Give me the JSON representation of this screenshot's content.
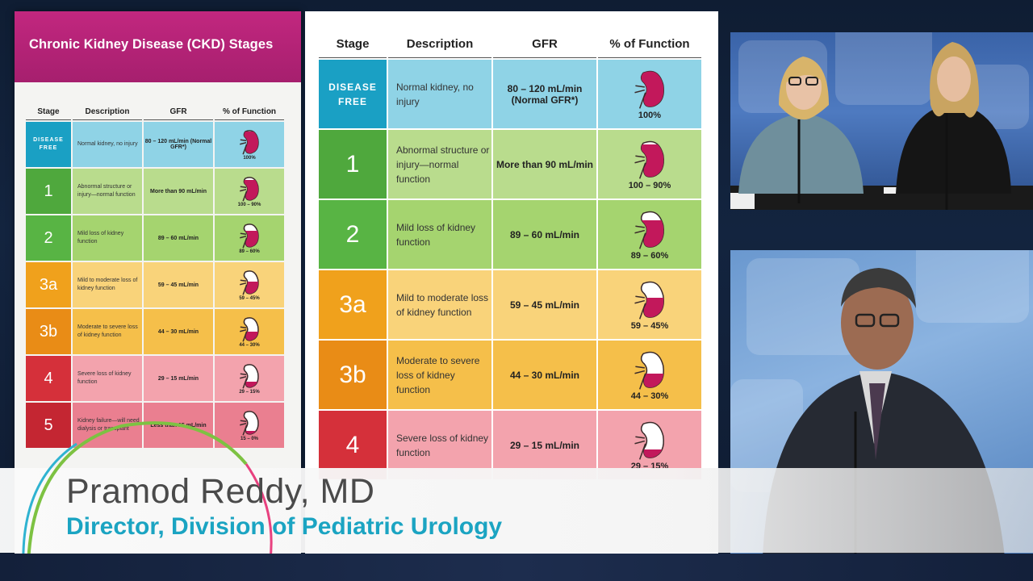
{
  "colors": {
    "teal": "#1aa0c4",
    "green": "#4fa83d",
    "orange": "#f0a11c",
    "red": "#d5303a",
    "magenta": "#c2277f",
    "name_gray": "#4a4a4a",
    "title_teal": "#1ba4c2"
  },
  "left_doc": {
    "title": "Chronic Kidney Disease (CKD) Stages",
    "headers": [
      "Stage",
      "Description",
      "GFR",
      "% of Function"
    ],
    "rows": [
      {
        "stage": "DISEASE FREE",
        "desc": "Normal kidney, no injury",
        "gfr": "80 – 120 mL/min (Normal GFR*)",
        "func": "100%",
        "fill": 1.0
      },
      {
        "stage": "1",
        "desc": "Abnormal structure or injury—normal function",
        "gfr": "More than 90 mL/min",
        "func": "100 – 90%",
        "fill": 0.92
      },
      {
        "stage": "2",
        "desc": "Mild loss of kidney function",
        "gfr": "89 – 60 mL/min",
        "func": "89 – 60%",
        "fill": 0.75
      },
      {
        "stage": "3a",
        "desc": "Mild to moderate loss of kidney function",
        "gfr": "59 – 45 mL/min",
        "func": "59 – 45%",
        "fill": 0.55
      },
      {
        "stage": "3b",
        "desc": "Moderate to severe loss of kidney function",
        "gfr": "44 – 30 mL/min",
        "func": "44 – 30%",
        "fill": 0.4
      },
      {
        "stage": "4",
        "desc": "Severe loss of kidney function",
        "gfr": "29 – 15 mL/min",
        "func": "29 – 15%",
        "fill": 0.25
      },
      {
        "stage": "5",
        "desc": "Kidney failure—will need dialysis or transplant",
        "gfr": "Less than 15 mL/min",
        "func": "15 – 0%",
        "fill": 0.1
      }
    ]
  },
  "main_table": {
    "headers": [
      "Stage",
      "Description",
      "GFR",
      "% of Function"
    ],
    "rows": [
      {
        "stage": "DISEASE FREE",
        "desc": "Normal kidney, no injury",
        "gfr": "80 – 120 mL/min (Normal GFR*)",
        "func": "100%",
        "fill": 1.0
      },
      {
        "stage": "1",
        "desc": "Abnormal structure or injury—normal function",
        "gfr": "More than 90 mL/min",
        "func": "100 – 90%",
        "fill": 0.92
      },
      {
        "stage": "2",
        "desc": "Mild loss of kidney function",
        "gfr": "89 – 60 mL/min",
        "func": "89 – 60%",
        "fill": 0.75
      },
      {
        "stage": "3a",
        "desc": "Mild to moderate loss of kidney function",
        "gfr": "59 – 45 mL/min",
        "func": "59 – 45%",
        "fill": 0.55
      },
      {
        "stage": "3b",
        "desc": "Moderate to severe loss of kidney function",
        "gfr": "44 – 30 mL/min",
        "func": "44 – 30%",
        "fill": 0.4
      },
      {
        "stage": "4",
        "desc": "Severe loss of kidney function",
        "gfr": "29 – 15 mL/min",
        "func": "29 – 15%",
        "fill": 0.25
      }
    ]
  },
  "lower_third": {
    "name": "Pramod Reddy, MD",
    "title": "Director, Division of Pediatric Urology"
  },
  "feeds": {
    "top": {
      "people_count": 2
    },
    "bottom": {
      "people_count": 1
    }
  }
}
